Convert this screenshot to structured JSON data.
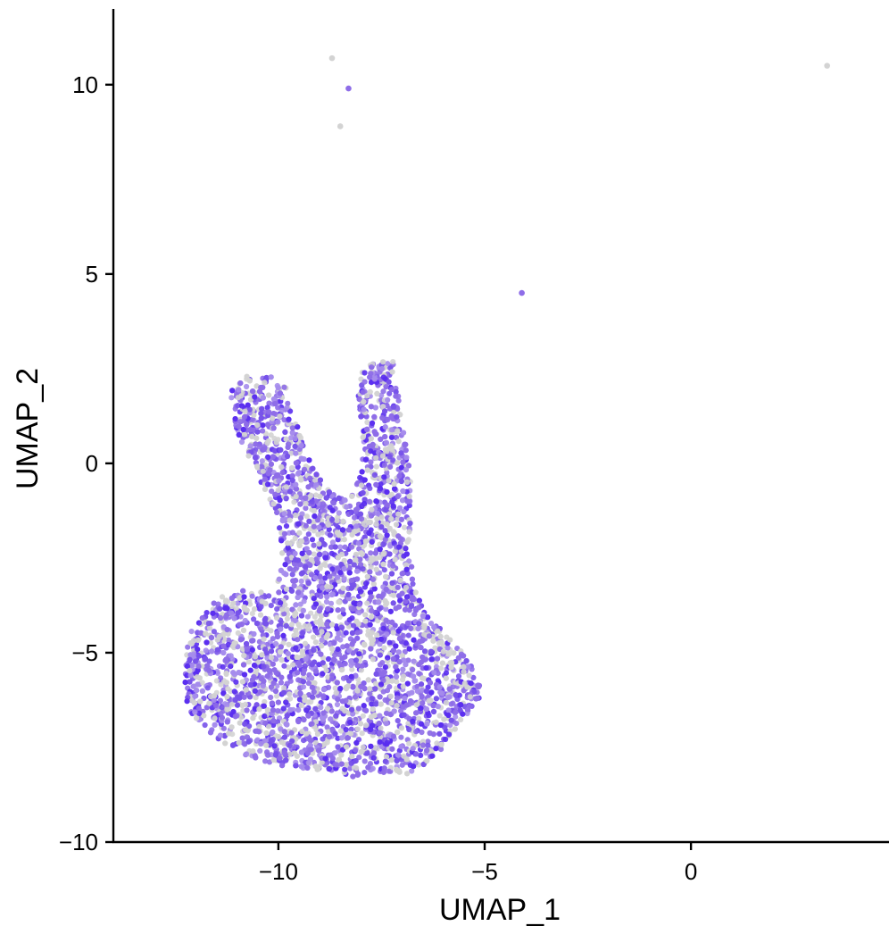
{
  "chart_data": {
    "type": "scatter",
    "title": "",
    "xlabel": "UMAP_1",
    "ylabel": "UMAP_2",
    "xlim": [
      -14.0,
      4.8
    ],
    "ylim": [
      -10.0,
      12.0
    ],
    "x_ticks": [
      {
        "value": -10,
        "label": "−10"
      },
      {
        "value": -5,
        "label": "−5"
      },
      {
        "value": 0,
        "label": "0"
      }
    ],
    "y_ticks": [
      {
        "value": -10,
        "label": "−10"
      },
      {
        "value": -5,
        "label": "−5"
      },
      {
        "value": 0,
        "label": "0"
      },
      {
        "value": 5,
        "label": "5"
      },
      {
        "value": 10,
        "label": "10"
      }
    ],
    "grid": false,
    "legend": "none",
    "colors": {
      "low": "#d3d3d3",
      "high": "#5a2ef0",
      "mid": "#8e6de8"
    },
    "cell_cloud_outline": [
      [
        -11.2,
        1.9
      ],
      [
        -10.8,
        2.3
      ],
      [
        -10.2,
        2.3
      ],
      [
        -9.8,
        2.0
      ],
      [
        -9.6,
        1.2
      ],
      [
        -9.3,
        0.2
      ],
      [
        -8.9,
        -0.6
      ],
      [
        -8.3,
        -1.0
      ],
      [
        -7.9,
        0.3
      ],
      [
        -8.1,
        1.5
      ],
      [
        -8.0,
        2.5
      ],
      [
        -7.5,
        2.8
      ],
      [
        -7.2,
        2.7
      ],
      [
        -7.1,
        1.8
      ],
      [
        -6.9,
        0.8
      ],
      [
        -6.8,
        -0.5
      ],
      [
        -6.8,
        -2.0
      ],
      [
        -6.7,
        -3.3
      ],
      [
        -6.3,
        -4.2
      ],
      [
        -5.9,
        -4.5
      ],
      [
        -5.6,
        -4.9
      ],
      [
        -5.3,
        -5.4
      ],
      [
        -5.1,
        -5.7
      ],
      [
        -5.1,
        -6.2
      ],
      [
        -5.5,
        -6.8
      ],
      [
        -5.9,
        -7.3
      ],
      [
        -6.2,
        -7.8
      ],
      [
        -6.8,
        -8.2
      ],
      [
        -7.5,
        -8.2
      ],
      [
        -8.2,
        -8.3
      ],
      [
        -9.0,
        -8.1
      ],
      [
        -10.0,
        -8.0
      ],
      [
        -10.8,
        -7.7
      ],
      [
        -11.6,
        -7.2
      ],
      [
        -12.2,
        -6.5
      ],
      [
        -12.3,
        -5.6
      ],
      [
        -12.2,
        -4.5
      ],
      [
        -11.6,
        -3.6
      ],
      [
        -10.7,
        -3.3
      ],
      [
        -10.1,
        -3.5
      ],
      [
        -9.9,
        -2.6
      ],
      [
        -10.0,
        -1.5
      ],
      [
        -10.5,
        -0.3
      ],
      [
        -11.0,
        0.8
      ]
    ],
    "outlier_points": [
      {
        "x": -8.7,
        "y": 10.7,
        "color": "#d3d3d3"
      },
      {
        "x": -8.3,
        "y": 9.9,
        "color": "#8e6de8"
      },
      {
        "x": -8.5,
        "y": 8.9,
        "color": "#d3d3d3"
      },
      {
        "x": -4.1,
        "y": 4.5,
        "color": "#8e6de8"
      },
      {
        "x": 3.3,
        "y": 10.5,
        "color": "#d3d3d3"
      }
    ]
  }
}
